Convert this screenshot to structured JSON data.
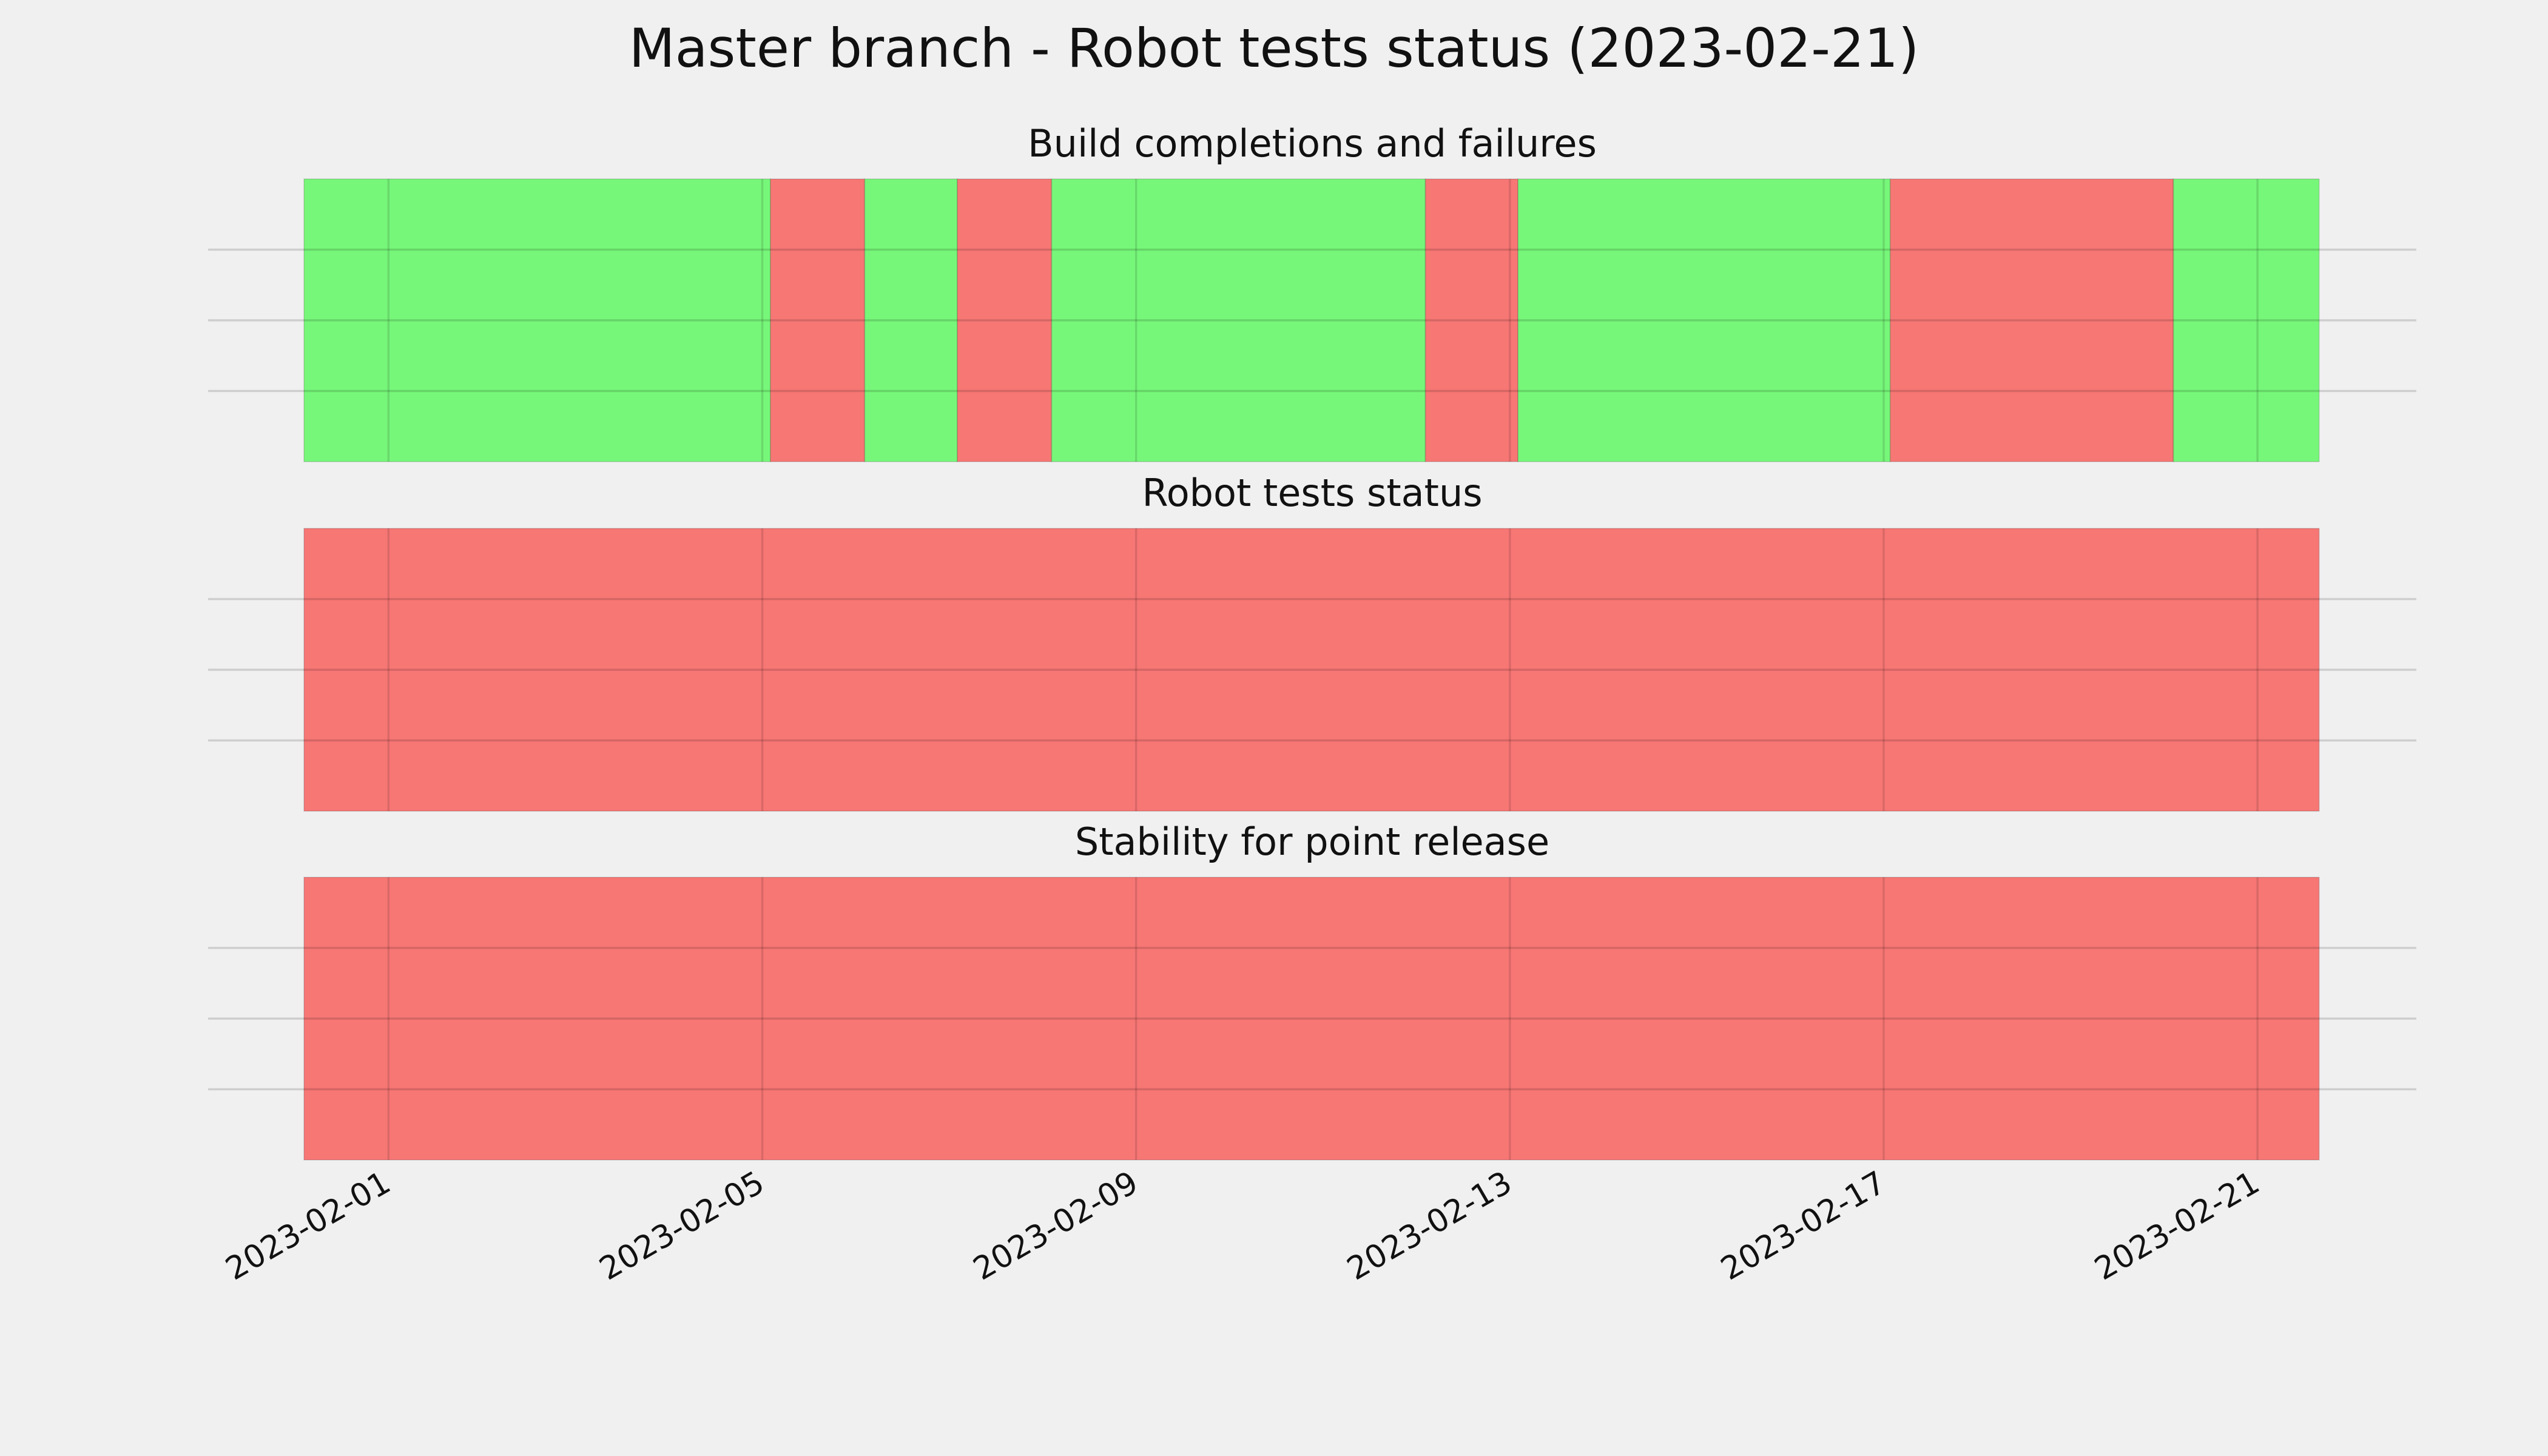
{
  "title": "Master branch - Robot tests status (2023-02-21)",
  "chart_data": [
    {
      "type": "timeline",
      "title": "Build completions and failures",
      "x": [
        "2023-01-31T02:18",
        "2023-02-05T02:05",
        "2023-02-06T02:18",
        "2023-02-07T02:05",
        "2023-02-08T02:18",
        "2023-02-12T02:18",
        "2023-02-13T02:05",
        "2023-02-17T01:41",
        "2023-02-20T02:24",
        "2023-02-21T15:50"
      ],
      "colors": [
        "#77f77a",
        "#f77775",
        "#77f77a",
        "#f77775",
        "#77f77a",
        "#f77775",
        "#77f77a",
        "#f77775",
        "#77f77a"
      ],
      "xlim": [
        "2023-01-30T01:40",
        "2023-02-22T16:48"
      ],
      "xticks": [
        "2023-02-01",
        "2023-02-05",
        "2023-02-09",
        "2023-02-13",
        "2023-02-17",
        "2023-02-21"
      ],
      "ylim": [
        0,
        1
      ],
      "yticks": [
        0.25,
        0.5,
        0.75
      ],
      "grid": true
    },
    {
      "type": "timeline",
      "title": "Robot tests status",
      "x": [
        "2023-01-31T02:18",
        "2023-02-21T15:50"
      ],
      "colors": [
        "#f77775"
      ],
      "xlim": [
        "2023-01-30T01:40",
        "2023-02-22T16:48"
      ],
      "xticks": [
        "2023-02-01",
        "2023-02-05",
        "2023-02-09",
        "2023-02-13",
        "2023-02-17",
        "2023-02-21"
      ],
      "ylim": [
        0,
        1
      ],
      "yticks": [
        0.25,
        0.5,
        0.75
      ],
      "grid": true
    },
    {
      "type": "timeline",
      "title": "Stability for point release",
      "x": [
        "2023-01-31T02:18",
        "2023-02-21T15:50"
      ],
      "colors": [
        "#f77775"
      ],
      "xlim": [
        "2023-01-30T01:40",
        "2023-02-22T16:48"
      ],
      "xticks": [
        "2023-02-01",
        "2023-02-05",
        "2023-02-09",
        "2023-02-13",
        "2023-02-17",
        "2023-02-21"
      ],
      "ylim": [
        0,
        1
      ],
      "yticks": [
        0.25,
        0.5,
        0.75
      ],
      "grid": true,
      "show_xtick_labels": true
    }
  ]
}
